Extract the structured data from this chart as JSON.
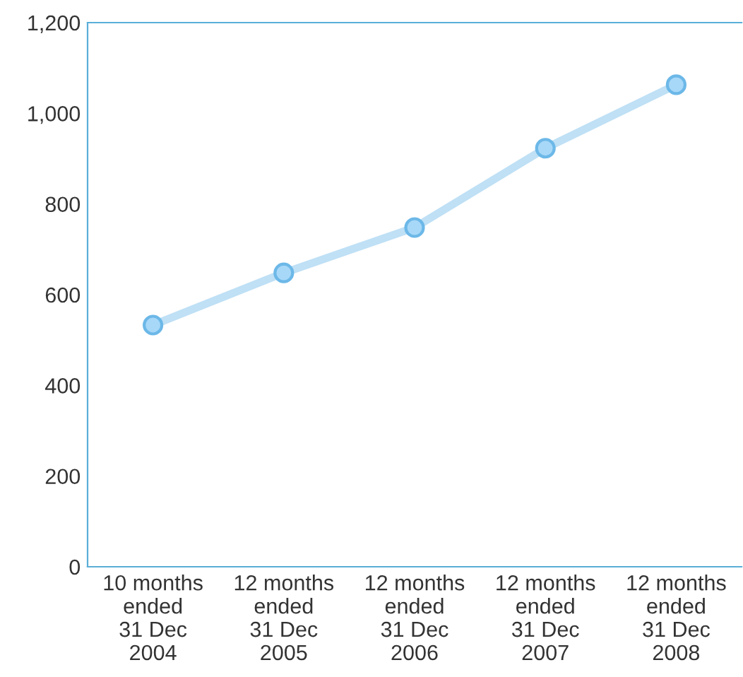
{
  "chart_data": {
    "type": "line",
    "categories": [
      "10 months\nended\n31 Dec\n2004",
      "12 months\nended\n31 Dec\n2005",
      "12 months\nended\n31 Dec\n2006",
      "12 months\nended\n31 Dec\n2007",
      "12 months\nended\n31 Dec\n2008"
    ],
    "series": [
      {
        "color": "#bfe0f5",
        "values": [
          533,
          648,
          748,
          923,
          1063
        ]
      }
    ],
    "ylim": [
      0,
      1200
    ],
    "yticks": [
      0,
      {
        "value": 200,
        "label": "200"
      },
      {
        "value": 400,
        "label": "400"
      },
      {
        "value": 600,
        "label": "600"
      },
      {
        "value": 800,
        "label": "800"
      },
      {
        "value": 1000,
        "label": "1,000"
      },
      {
        "value": 1200,
        "label": "1,200"
      }
    ],
    "marker": "circle",
    "line_style": "solid",
    "grid": false,
    "legend": false
  }
}
